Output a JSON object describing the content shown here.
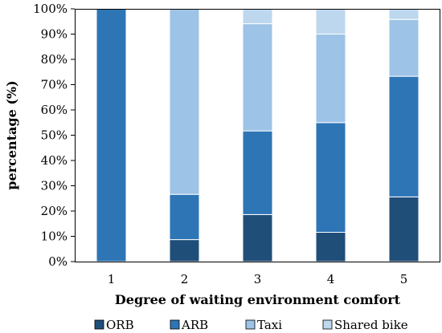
{
  "chart_data": {
    "type": "bar",
    "stacked": true,
    "percent": true,
    "categories": [
      "1",
      "2",
      "3",
      "4",
      "5"
    ],
    "series": [
      {
        "name": "ORB",
        "color": "#1f4e79",
        "values": [
          0,
          8.7,
          18.6,
          11.6,
          25.6
        ]
      },
      {
        "name": "ARB",
        "color": "#2e75b6",
        "values": [
          100,
          17.9,
          33.1,
          43.4,
          47.7
        ]
      },
      {
        "name": "Taxi",
        "color": "#9dc3e6",
        "values": [
          0,
          73.4,
          42.4,
          35.0,
          22.5
        ]
      },
      {
        "name": "Shared bike",
        "color": "#bdd7ee",
        "values": [
          0,
          0,
          5.9,
          10.0,
          4.2
        ]
      }
    ],
    "xlabel": "Degree of waiting environment comfort",
    "ylabel": "percentage (%)",
    "ylim": [
      0,
      100
    ],
    "yticks": [
      "0%",
      "10%",
      "20%",
      "30%",
      "40%",
      "50%",
      "60%",
      "70%",
      "80%",
      "90%",
      "100%"
    ],
    "grid": false,
    "legend_position": "bottom"
  }
}
